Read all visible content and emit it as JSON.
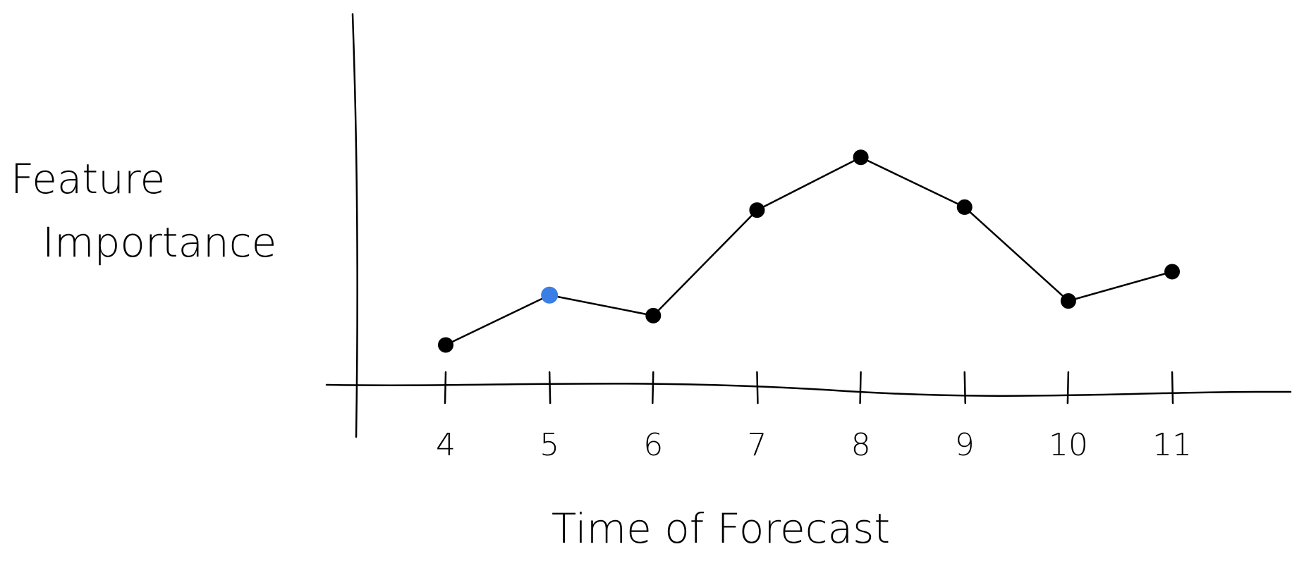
{
  "chart_data": {
    "type": "line",
    "title": "",
    "xlabel": "Time of Forecast",
    "ylabel_lines": [
      "Feature",
      "Importance"
    ],
    "categories": [
      "4",
      "5",
      "6",
      "7",
      "8",
      "9",
      "10",
      "11"
    ],
    "x": [
      4,
      5,
      6,
      7,
      8,
      9,
      10,
      11
    ],
    "values": [
      0.16,
      0.33,
      0.26,
      0.62,
      0.8,
      0.63,
      0.31,
      0.41
    ],
    "highlight_index": 1,
    "ylim": [
      0,
      1
    ],
    "grid": false,
    "legend": "none"
  },
  "colors": {
    "line": "#000000",
    "marker": "#000000",
    "highlight": "#3a7ee6",
    "background": "#ffffff"
  }
}
